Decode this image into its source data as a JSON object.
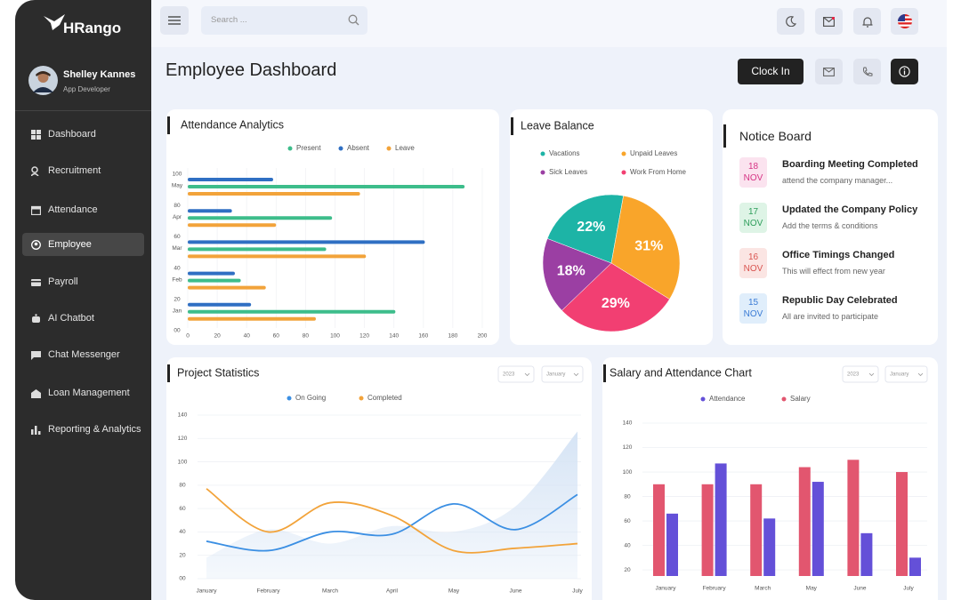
{
  "brand": "HRango",
  "user": {
    "name": "Shelley Kannes",
    "role": "App Developer"
  },
  "nav": [
    "Dashboard",
    "Recruitment",
    "Attendance",
    "Employee",
    "Payroll",
    "AI Chatbot",
    "Chat Messenger",
    "Loan Management",
    "Reporting & Analytics"
  ],
  "search_placeholder": "Search ...",
  "page_title": "Employee Dashboard",
  "clock_in": "Clock In",
  "notice_board": {
    "title": "Notice Board",
    "items": [
      {
        "day": "18",
        "month": "NOV",
        "title": "Boarding Meeting Completed",
        "text": "attend the company manager..."
      },
      {
        "day": "17",
        "month": "NOV",
        "title": "Updated the Company Policy",
        "text": "Add the terms & conditions"
      },
      {
        "day": "16",
        "month": "NOV",
        "title": "Office Timings Changed",
        "text": "This will effect from new year"
      },
      {
        "day": "15",
        "month": "NOV",
        "title": "Republic Day Celebrated",
        "text": "All are invited to participate"
      }
    ]
  },
  "chart_data": [
    {
      "type": "bar",
      "horizontal": true,
      "title": "Attendance Analytics",
      "categories": [
        "Jan",
        "Feb",
        "Mar",
        "Apr",
        "May"
      ],
      "y_labels": [
        "00",
        "20",
        "40",
        "60",
        "80",
        "100"
      ],
      "series": [
        {
          "name": "Present",
          "color": "#3dbd8b",
          "values": [
            141,
            36,
            94,
            98,
            188
          ]
        },
        {
          "name": "Absent",
          "color": "#2f6fc3",
          "values": [
            43,
            32,
            161,
            30,
            58
          ]
        },
        {
          "name": "Leave",
          "color": "#f2a33a",
          "values": [
            87,
            53,
            121,
            60,
            117
          ]
        }
      ],
      "xlim": [
        0,
        200
      ],
      "xticks": [
        0,
        20,
        40,
        60,
        80,
        100,
        120,
        140,
        160,
        180,
        200
      ],
      "grid": true
    },
    {
      "type": "pie",
      "title": "Leave Balance",
      "categories": [
        "Vacations",
        "Unpaid Leaves",
        "Sick Leaves",
        "Work From Home"
      ],
      "values": [
        22,
        31,
        18,
        29
      ],
      "value_labels": [
        "22%",
        "31%",
        "18%",
        "29%"
      ],
      "colors": [
        "#1db4a6",
        "#f9a52a",
        "#9b3fa3",
        "#f23f72"
      ]
    },
    {
      "type": "line",
      "title": "Project Statistics",
      "filters": [
        "2023",
        "January"
      ],
      "categories": [
        "January",
        "February",
        "March",
        "April",
        "May",
        "June",
        "July"
      ],
      "series": [
        {
          "color": "#d6e4f5",
          "area": true,
          "values": [
            18,
            42,
            30,
            45,
            40,
            62,
            126
          ]
        },
        {
          "name": "On Going",
          "color": "#3b8fe3",
          "values": [
            32,
            24,
            40,
            38,
            64,
            42,
            72
          ]
        },
        {
          "name": "Completed",
          "color": "#f2a33a",
          "values": [
            77,
            40,
            65,
            54,
            24,
            26,
            30
          ]
        }
      ],
      "ylim": [
        0,
        140
      ],
      "yticks": [
        {
          "value": 0,
          "label": "00"
        },
        20,
        40,
        60,
        80,
        100,
        120,
        140
      ],
      "grid": true
    },
    {
      "type": "bar",
      "title": "Salary and Attendance Chart",
      "filters": [
        "2023",
        "January"
      ],
      "categories": [
        "January",
        "February",
        "March",
        "May",
        "June",
        "July"
      ],
      "series": [
        {
          "name": "Attendance",
          "color": "#6450d8",
          "values": [
            66,
            107,
            62,
            92,
            50,
            30
          ]
        },
        {
          "name": "Salary",
          "color": "#e2566f",
          "values": [
            90,
            90,
            90,
            104,
            110,
            100
          ]
        }
      ],
      "ylim": [
        15,
        140
      ],
      "yticks": [
        20,
        40,
        60,
        80,
        100,
        120,
        140
      ],
      "grid": true
    }
  ]
}
